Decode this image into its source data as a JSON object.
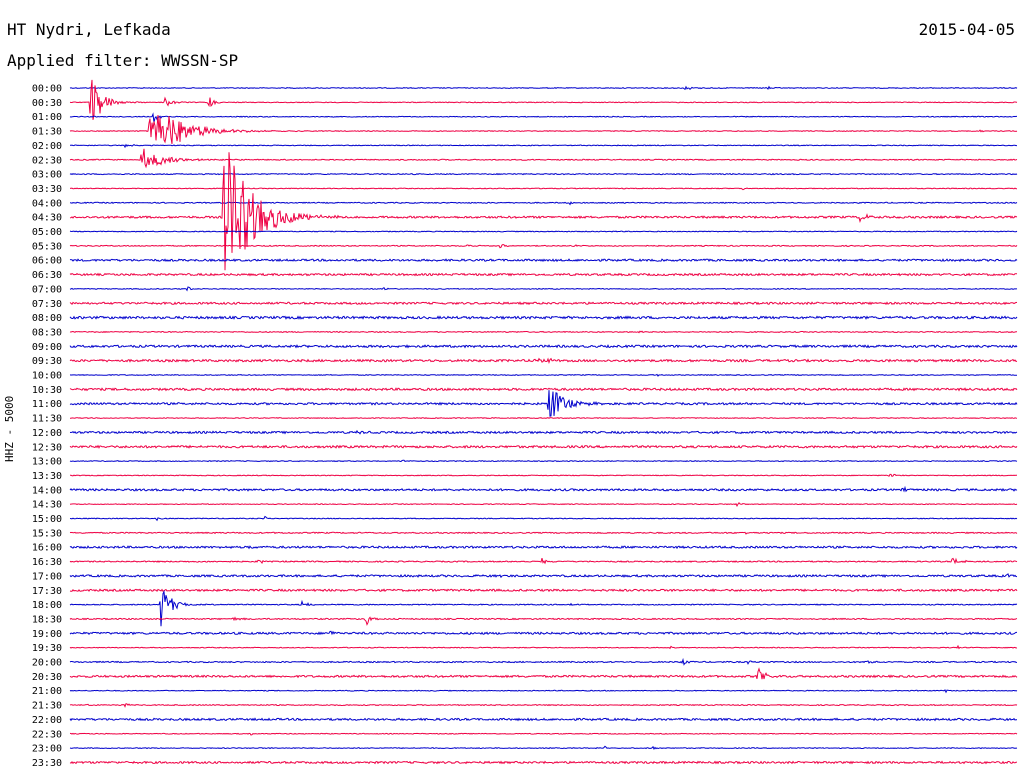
{
  "header": {
    "station": "HT Nydri, Lefkada",
    "filter": "Applied filter: WWSSN-SP",
    "date": "2015-04-05",
    "channel": "HHZ - 5000"
  },
  "colors": {
    "odd": "#0000cc",
    "even": "#ee0044"
  },
  "chart_data": {
    "type": "line",
    "title": "HT Nydri, Lefkada",
    "ylabel": "HHZ - 5000",
    "traces": [
      {
        "label": "00:00",
        "color": "blue",
        "noise": 0.4,
        "events": [
          {
            "x": 685,
            "amp": 2,
            "dur": 20
          },
          {
            "x": 768,
            "amp": 1.5,
            "dur": 8
          }
        ]
      },
      {
        "label": "00:30",
        "color": "red",
        "noise": 0.4,
        "events": [
          {
            "x": 91,
            "amp": 30,
            "dur": 22
          },
          {
            "x": 165,
            "amp": 5,
            "dur": 14
          },
          {
            "x": 209,
            "amp": 6,
            "dur": 10
          }
        ]
      },
      {
        "label": "01:00",
        "color": "blue",
        "noise": 0.4,
        "events": [
          {
            "x": 153,
            "amp": 8,
            "dur": 10
          }
        ]
      },
      {
        "label": "01:30",
        "color": "red",
        "noise": 0.4,
        "events": [
          {
            "x": 150,
            "amp": 32,
            "dur": 60
          },
          {
            "x": 980,
            "amp": 1.5,
            "dur": 10
          }
        ]
      },
      {
        "label": "02:00",
        "color": "blue",
        "noise": 0.4,
        "events": [
          {
            "x": 125,
            "amp": 2,
            "dur": 14
          }
        ]
      },
      {
        "label": "02:30",
        "color": "red",
        "noise": 0.5,
        "events": [
          {
            "x": 142,
            "amp": 13,
            "dur": 40
          },
          {
            "x": 740,
            "amp": 1.5,
            "dur": 6
          }
        ]
      },
      {
        "label": "03:00",
        "color": "blue",
        "noise": 0.5,
        "events": []
      },
      {
        "label": "03:30",
        "color": "red",
        "noise": 0.4,
        "events": [
          {
            "x": 743,
            "amp": 2,
            "dur": 4
          }
        ]
      },
      {
        "label": "04:00",
        "color": "blue",
        "noise": 0.5,
        "events": [
          {
            "x": 570,
            "amp": 1.5,
            "dur": 14
          }
        ]
      },
      {
        "label": "04:30",
        "color": "red",
        "noise": 1.0,
        "events": [
          {
            "x": 224,
            "amp": 80,
            "dur": 55
          },
          {
            "x": 860,
            "amp": 5,
            "dur": 14
          }
        ]
      },
      {
        "label": "05:00",
        "color": "blue",
        "noise": 0.4,
        "events": []
      },
      {
        "label": "05:30",
        "color": "red",
        "noise": 0.5,
        "events": [
          {
            "x": 467,
            "amp": 2,
            "dur": 10
          },
          {
            "x": 500,
            "amp": 2,
            "dur": 14
          },
          {
            "x": 573,
            "amp": 1.5,
            "dur": 6
          }
        ]
      },
      {
        "label": "06:00",
        "color": "blue",
        "noise": 1.0,
        "events": []
      },
      {
        "label": "06:30",
        "color": "red",
        "noise": 1.0,
        "events": []
      },
      {
        "label": "07:00",
        "color": "blue",
        "noise": 0.4,
        "events": [
          {
            "x": 187,
            "amp": 3,
            "dur": 8
          },
          {
            "x": 384,
            "amp": 3,
            "dur": 6
          }
        ]
      },
      {
        "label": "07:30",
        "color": "red",
        "noise": 1.0,
        "events": [
          {
            "x": 114,
            "amp": 2,
            "dur": 6
          }
        ]
      },
      {
        "label": "08:00",
        "color": "blue",
        "noise": 1.2,
        "events": []
      },
      {
        "label": "08:30",
        "color": "red",
        "noise": 0.5,
        "events": [
          {
            "x": 640,
            "amp": 2,
            "dur": 4
          },
          {
            "x": 898,
            "amp": 2,
            "dur": 4
          }
        ]
      },
      {
        "label": "09:00",
        "color": "blue",
        "noise": 1.1,
        "events": []
      },
      {
        "label": "09:30",
        "color": "red",
        "noise": 1.1,
        "events": [
          {
            "x": 533,
            "amp": 3,
            "dur": 14
          },
          {
            "x": 549,
            "amp": 2,
            "dur": 6
          }
        ]
      },
      {
        "label": "10:00",
        "color": "blue",
        "noise": 0.4,
        "events": [
          {
            "x": 657,
            "amp": 2,
            "dur": 4
          }
        ]
      },
      {
        "label": "10:30",
        "color": "red",
        "noise": 1.1,
        "events": []
      },
      {
        "label": "11:00",
        "color": "blue",
        "noise": 1.0,
        "events": [
          {
            "x": 549,
            "amp": 20,
            "dur": 30
          }
        ]
      },
      {
        "label": "11:30",
        "color": "red",
        "noise": 0.4,
        "events": []
      },
      {
        "label": "12:00",
        "color": "blue",
        "noise": 1.0,
        "events": [
          {
            "x": 357,
            "amp": 2,
            "dur": 8
          }
        ]
      },
      {
        "label": "12:30",
        "color": "red",
        "noise": 1.1,
        "events": []
      },
      {
        "label": "13:00",
        "color": "blue",
        "noise": 0.4,
        "events": [
          {
            "x": 403,
            "amp": 2,
            "dur": 4
          }
        ]
      },
      {
        "label": "13:30",
        "color": "red",
        "noise": 0.4,
        "events": [
          {
            "x": 890,
            "amp": 2,
            "dur": 14
          }
        ]
      },
      {
        "label": "14:00",
        "color": "blue",
        "noise": 1.0,
        "events": [
          {
            "x": 902,
            "amp": 3,
            "dur": 8
          }
        ]
      },
      {
        "label": "14:30",
        "color": "red",
        "noise": 0.4,
        "events": [
          {
            "x": 737,
            "amp": 2,
            "dur": 10
          }
        ]
      },
      {
        "label": "15:00",
        "color": "blue",
        "noise": 0.4,
        "events": [
          {
            "x": 157,
            "amp": 2,
            "dur": 10
          },
          {
            "x": 265,
            "amp": 2,
            "dur": 4
          }
        ]
      },
      {
        "label": "15:30",
        "color": "red",
        "noise": 0.6,
        "events": [
          {
            "x": 746,
            "amp": 2,
            "dur": 8
          }
        ]
      },
      {
        "label": "16:00",
        "color": "blue",
        "noise": 1.0,
        "events": [
          {
            "x": 250,
            "amp": 2,
            "dur": 4
          }
        ]
      },
      {
        "label": "16:30",
        "color": "red",
        "noise": 0.6,
        "events": [
          {
            "x": 258,
            "amp": 2,
            "dur": 16
          },
          {
            "x": 542,
            "amp": 3,
            "dur": 8
          },
          {
            "x": 952,
            "amp": 4,
            "dur": 16
          }
        ]
      },
      {
        "label": "17:00",
        "color": "blue",
        "noise": 1.0,
        "events": [
          {
            "x": 495,
            "amp": 1.5,
            "dur": 10
          },
          {
            "x": 1008,
            "amp": 2,
            "dur": 10
          }
        ]
      },
      {
        "label": "17:30",
        "color": "red",
        "noise": 1.0,
        "events": []
      },
      {
        "label": "18:00",
        "color": "blue",
        "noise": 0.5,
        "events": [
          {
            "x": 161,
            "amp": 22,
            "dur": 20
          },
          {
            "x": 302,
            "amp": 3,
            "dur": 16
          },
          {
            "x": 571,
            "amp": 2,
            "dur": 6
          }
        ]
      },
      {
        "label": "18:30",
        "color": "red",
        "noise": 0.6,
        "events": [
          {
            "x": 232,
            "amp": 2,
            "dur": 16
          },
          {
            "x": 366,
            "amp": 8,
            "dur": 10
          }
        ]
      },
      {
        "label": "19:00",
        "color": "blue",
        "noise": 1.0,
        "events": [
          {
            "x": 331,
            "amp": 4,
            "dur": 4
          }
        ]
      },
      {
        "label": "19:30",
        "color": "red",
        "noise": 0.4,
        "events": [
          {
            "x": 670,
            "amp": 2,
            "dur": 4
          },
          {
            "x": 958,
            "amp": 2,
            "dur": 4
          }
        ]
      },
      {
        "label": "20:00",
        "color": "blue",
        "noise": 0.6,
        "events": [
          {
            "x": 683,
            "amp": 5,
            "dur": 6
          },
          {
            "x": 748,
            "amp": 2,
            "dur": 6
          },
          {
            "x": 864,
            "amp": 3,
            "dur": 12
          }
        ]
      },
      {
        "label": "20:30",
        "color": "red",
        "noise": 1.0,
        "events": [
          {
            "x": 758,
            "amp": 10,
            "dur": 12
          }
        ]
      },
      {
        "label": "21:00",
        "color": "blue",
        "noise": 0.4,
        "events": [
          {
            "x": 946,
            "amp": 2,
            "dur": 4
          }
        ]
      },
      {
        "label": "21:30",
        "color": "red",
        "noise": 0.5,
        "events": [
          {
            "x": 89,
            "amp": 2,
            "dur": 4
          },
          {
            "x": 125,
            "amp": 2,
            "dur": 8
          }
        ]
      },
      {
        "label": "22:00",
        "color": "blue",
        "noise": 1.0,
        "events": []
      },
      {
        "label": "22:30",
        "color": "red",
        "noise": 0.4,
        "events": [
          {
            "x": 251,
            "amp": 2,
            "dur": 4
          }
        ]
      },
      {
        "label": "23:00",
        "color": "blue",
        "noise": 0.4,
        "events": [
          {
            "x": 605,
            "amp": 2,
            "dur": 10
          },
          {
            "x": 653,
            "amp": 2,
            "dur": 4
          }
        ]
      },
      {
        "label": "23:30",
        "color": "red",
        "noise": 1.0,
        "events": []
      }
    ]
  }
}
